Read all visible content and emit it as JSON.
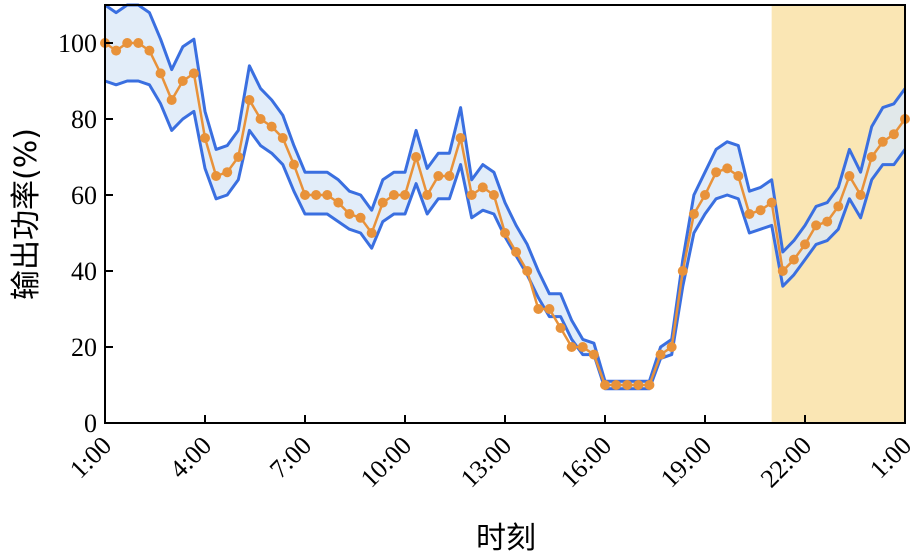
{
  "chart_data": {
    "type": "line",
    "xlabel": "时刻",
    "ylabel": "输出功率(%)",
    "xlim": [
      1,
      25
    ],
    "ylim": [
      0,
      110
    ],
    "x_ticks": [
      {
        "x": 1,
        "label": "1:00"
      },
      {
        "x": 4,
        "label": "4:00"
      },
      {
        "x": 7,
        "label": "7:00"
      },
      {
        "x": 10,
        "label": "10:00"
      },
      {
        "x": 13,
        "label": "13:00"
      },
      {
        "x": 16,
        "label": "16:00"
      },
      {
        "x": 19,
        "label": "19:00"
      },
      {
        "x": 22,
        "label": "22:00"
      },
      {
        "x": 25,
        "label": "1:00"
      }
    ],
    "y_ticks": [
      0,
      20,
      40,
      60,
      80,
      100
    ],
    "highlight_region": {
      "x_start": 21.0,
      "x_end": 25.0,
      "color": "#fae6b4"
    },
    "band_color": "#dbe8f8",
    "bound_color": "#3a6fe0",
    "series_color": "#e8923a",
    "x": [
      1.0,
      1.333,
      1.667,
      2.0,
      2.333,
      2.667,
      3.0,
      3.333,
      3.667,
      4.0,
      4.333,
      4.667,
      5.0,
      5.333,
      5.667,
      6.0,
      6.333,
      6.667,
      7.0,
      7.333,
      7.667,
      8.0,
      8.333,
      8.667,
      9.0,
      9.333,
      9.667,
      10.0,
      10.333,
      10.667,
      11.0,
      11.333,
      11.667,
      12.0,
      12.333,
      12.667,
      13.0,
      13.333,
      13.667,
      14.0,
      14.333,
      14.667,
      15.0,
      15.333,
      15.667,
      16.0,
      16.333,
      16.667,
      17.0,
      17.333,
      17.667,
      18.0,
      18.333,
      18.667,
      19.0,
      19.333,
      19.667,
      20.0,
      20.333,
      20.667,
      21.0,
      21.333,
      21.667,
      22.0,
      22.333,
      22.667,
      23.0,
      23.333,
      23.667,
      24.0,
      24.333,
      24.667,
      25.0
    ],
    "upper": [
      110,
      108,
      110,
      110,
      108,
      101,
      93,
      99,
      101,
      82,
      72,
      73,
      77,
      94,
      88,
      85,
      81,
      73,
      66,
      66,
      66,
      64,
      61,
      60,
      56,
      64,
      66,
      66,
      77,
      67,
      71,
      71,
      83,
      64,
      68,
      66,
      58,
      52,
      47,
      40,
      34,
      34,
      27,
      22,
      21,
      11,
      11,
      11,
      11,
      11,
      20,
      22,
      43,
      60,
      66,
      72,
      74,
      73,
      61,
      62,
      64,
      45,
      48,
      52,
      57,
      58,
      62,
      72,
      66,
      78,
      83,
      84,
      88
    ],
    "lower": [
      90,
      89,
      90,
      90,
      89,
      84,
      77,
      80,
      82,
      67,
      59,
      60,
      64,
      77,
      73,
      71,
      68,
      61,
      55,
      55,
      55,
      53,
      51,
      50,
      46,
      53,
      55,
      55,
      63,
      55,
      59,
      59,
      68,
      54,
      56,
      55,
      49,
      44,
      39,
      33,
      28,
      28,
      22,
      18,
      18,
      9,
      9,
      9,
      9,
      9,
      17,
      18,
      36,
      50,
      55,
      59,
      60,
      59,
      50,
      51,
      52,
      36,
      39,
      43,
      47,
      48,
      51,
      59,
      54,
      64,
      68,
      68,
      72
    ],
    "values": [
      100,
      98,
      100,
      100,
      98,
      92,
      85,
      90,
      92,
      75,
      65,
      66,
      70,
      85,
      80,
      78,
      75,
      68,
      60,
      60,
      60,
      58,
      55,
      54,
      50,
      58,
      60,
      60,
      70,
      60,
      65,
      65,
      75,
      60,
      62,
      60,
      50,
      45,
      40,
      30,
      30,
      25,
      20,
      20,
      18,
      10,
      10,
      10,
      10,
      10,
      18,
      20,
      40,
      55,
      60,
      66,
      67,
      65,
      55,
      56,
      58,
      40,
      43,
      47,
      52,
      53,
      57,
      65,
      60,
      70,
      74,
      76,
      80
    ]
  }
}
